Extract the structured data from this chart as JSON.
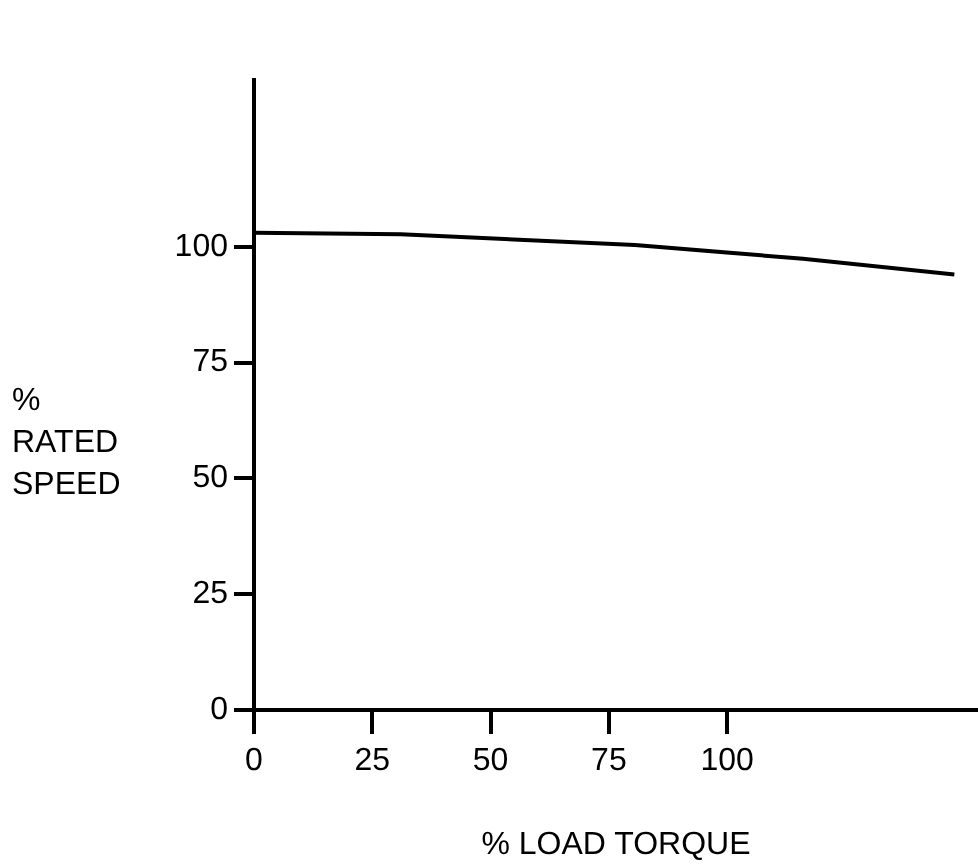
{
  "chart_data": {
    "type": "line",
    "xlabel": "% LOAD TORQUE",
    "ylabel": "%\nRATED\nSPEED",
    "x": [
      0,
      31,
      80.5,
      116,
      148
    ],
    "series": [
      {
        "color": "#000000",
        "values": [
          103,
          102.7,
          100.4,
          97.4,
          94
        ]
      }
    ],
    "xlim": [
      0,
      153
    ],
    "xticks": [
      0,
      25,
      50,
      75,
      100
    ],
    "ylim": [
      0,
      136
    ],
    "yticks": [
      0,
      25,
      50,
      75,
      100
    ],
    "grid": false,
    "legend": false,
    "marker": "none",
    "line_style": "solid"
  }
}
